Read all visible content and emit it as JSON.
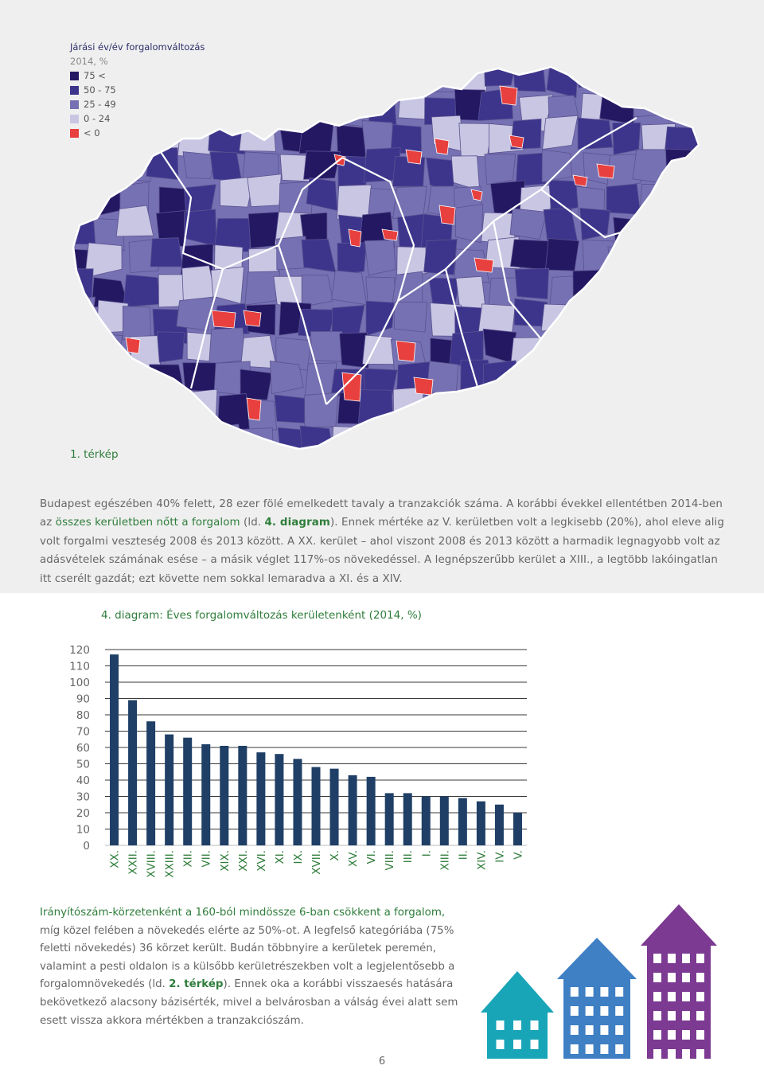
{
  "colors": {
    "c75": "#241863",
    "c50": "#3d358c",
    "c25": "#7671b3",
    "c0": "#c8c6e3",
    "cneg": "#e8403e",
    "bar": "#1f3f66",
    "green": "#2f7d3b",
    "teal": "#19a5b8",
    "blue": "#3f7fc4",
    "purple": "#7d3a92"
  },
  "legend": {
    "title": "Járási év/év forgalomváltozás",
    "subtitle": "2014, %",
    "items": [
      {
        "label": "75 <",
        "color": "#241863"
      },
      {
        "label": "50 - 75",
        "color": "#3d358c"
      },
      {
        "label": "25 - 49",
        "color": "#7671b3"
      },
      {
        "label": "0 - 24",
        "color": "#c8c6e3"
      },
      {
        "label": "< 0",
        "color": "#e8403e"
      }
    ]
  },
  "map": {
    "label": "1. térkép"
  },
  "para1": {
    "s1": "Budapest egészében 40% felett, 28 ezer fölé emelkedett tavaly a tranzakciók száma. A korábbi évekkel ellentétben 2014-ben az ",
    "s2": "összes kerületben nőtt a forgalom",
    "s3": " (ld. ",
    "s4": "4. diagram",
    "s5": "). Ennek mértéke az V. kerületben volt a legkisebb (20%), ahol eleve alig volt forgalmi veszteség 2008 és 2013 között. A XX. kerület – ahol viszont 2008 és 2013 között a harmadik legnagyobb volt az adásvételek számának esése – a másik véglet 117%-os növekedéssel. A legnépszerűbb kerület a XIII., a legtöbb lakóingatlan itt cserélt gazdát; ezt követte nem sokkal lemaradva a XI. és a XIV."
  },
  "chart_title": "4. diagram: Éves forgalomváltozás kerületenként (2014, %)",
  "chart_data": {
    "type": "bar",
    "title": "4. diagram: Éves forgalomváltozás kerületenként (2014, %)",
    "categories": [
      "XX.",
      "XXII.",
      "XVIII.",
      "XXIII.",
      "XII.",
      "VII.",
      "XIX.",
      "XXI.",
      "XVI.",
      "XI.",
      "IX.",
      "XVII.",
      "X.",
      "XV.",
      "VI.",
      "VIII.",
      "III.",
      "I.",
      "XIII.",
      "II.",
      "XIV.",
      "IV.",
      "V."
    ],
    "values": [
      117,
      89,
      76,
      68,
      66,
      62,
      61,
      61,
      57,
      56,
      53,
      48,
      47,
      43,
      42,
      32,
      32,
      30,
      30,
      29,
      27,
      25,
      20
    ],
    "yticks": [
      "0",
      "10",
      "20",
      "30",
      "40",
      "50",
      "60",
      "70",
      "80",
      "90",
      "100",
      "110",
      "120"
    ],
    "ylim": [
      0,
      120
    ],
    "grid": true,
    "legend": "none"
  },
  "para2": {
    "s1": "Irányítószám-körzetenként a 160-ból mindössze 6-ban csökkent a forgalom,",
    "s2": " míg közel felében a növekedés elérte az 50%-ot. A legfelső kategóriába (75% feletti növekedés) 36 körzet került. Budán többnyire a kerületek peremén, valamint a pesti oldalon is a külsőbb kerületrészekben volt a legjelentősebb a forgalomnövekedés (ld. ",
    "s3": "2. térkép",
    "s4": "). Ennek oka a korábbi visszaesés hatására bekövetkező alacsony bázisérték, mivel a belvárosban a válság évei alatt sem esett vissza akkora mértékben a tranzakciószám."
  },
  "page_number": "6"
}
